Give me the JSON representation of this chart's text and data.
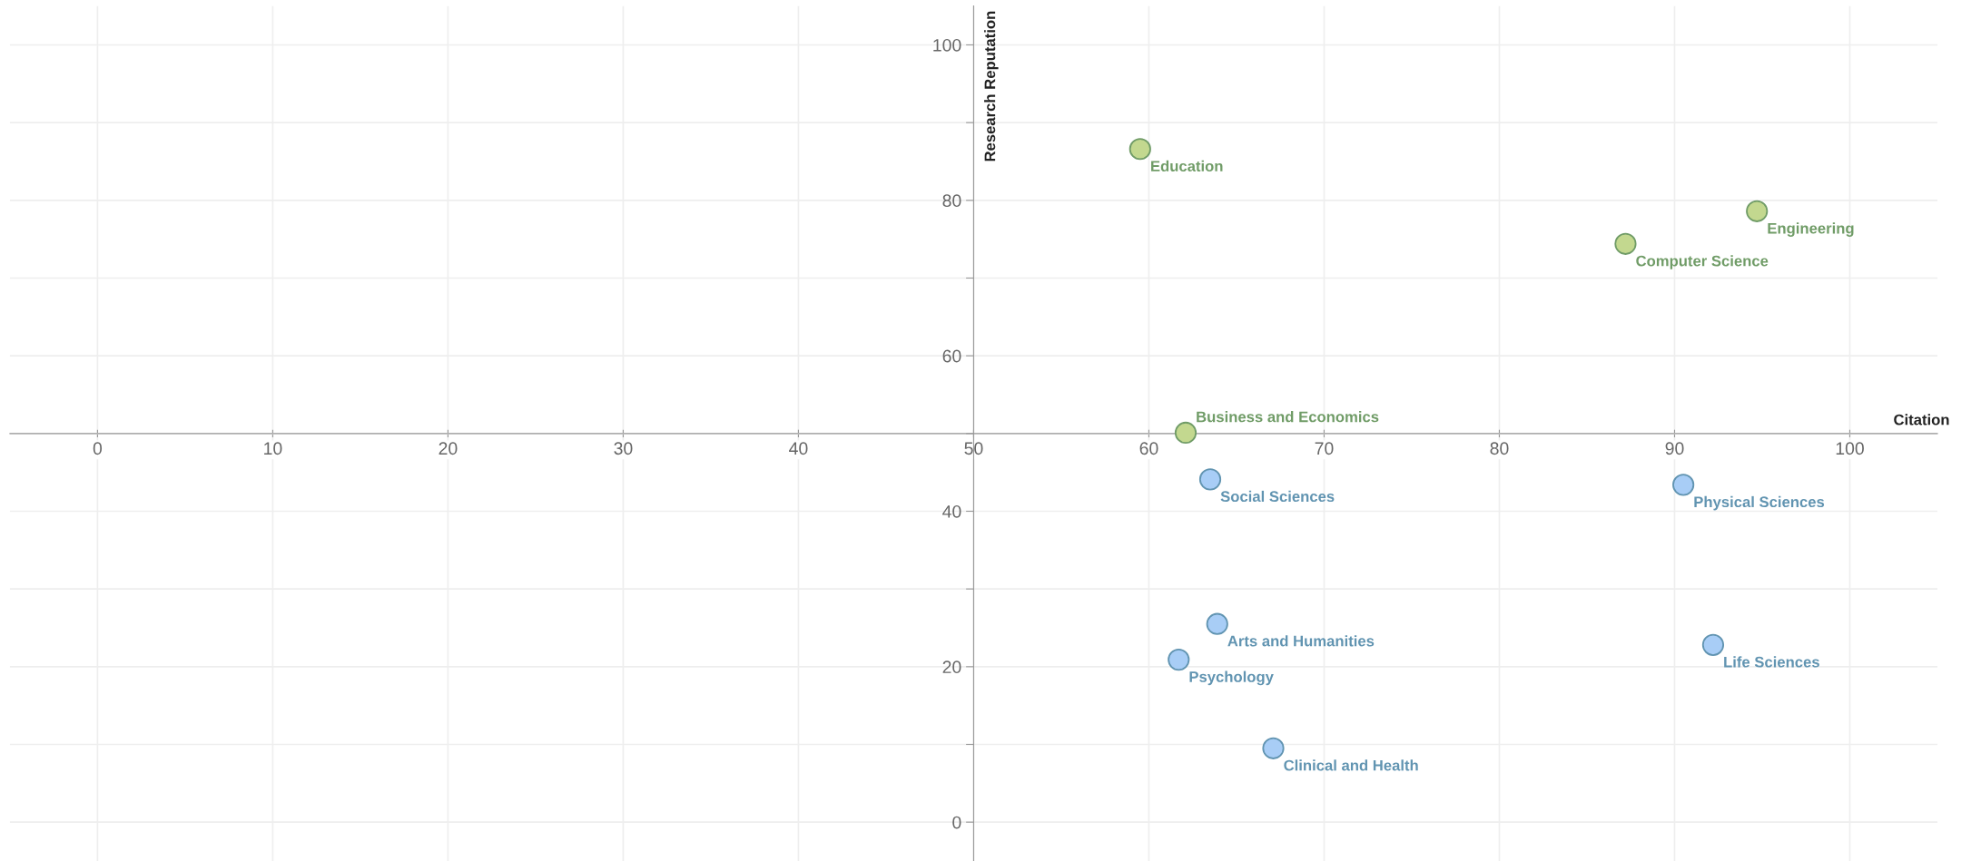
{
  "chart_data": {
    "type": "scatter",
    "xlabel": "Citation",
    "ylabel": "Research Reputation",
    "series": [
      {
        "color": "#c3d88f",
        "x": [
          59.5,
          94.7,
          87.2,
          62.1
        ],
        "values": [
          86.6,
          78.6,
          74.4,
          50.1
        ],
        "value_labels": [
          "Education",
          "Engineering",
          "Computer Science",
          "Business and Economics"
        ]
      },
      {
        "color": "#a8cdf6",
        "x": [
          63.5,
          90.5,
          63.9,
          61.7,
          92.2,
          67.1
        ],
        "values": [
          44.1,
          43.4,
          25.5,
          20.9,
          22.8,
          9.5
        ],
        "value_labels": [
          "Social Sciences",
          "Physical Sciences",
          "Arts and Humanities",
          "Psychology",
          "Life Sciences",
          "Clinical and Health"
        ]
      }
    ],
    "xlim": [
      -5,
      105
    ],
    "ylim": [
      -5,
      105
    ],
    "xticks": [
      0,
      10,
      20,
      30,
      40,
      50,
      60,
      70,
      80,
      90,
      100
    ],
    "yticks": [
      0,
      {
        "value": 10,
        "label": null
      },
      20,
      {
        "value": 30,
        "label": null
      },
      40,
      {
        "value": 50,
        "label": null
      },
      60,
      {
        "value": 70,
        "label": null
      },
      80,
      {
        "value": 90,
        "label": null
      },
      100
    ],
    "grid": true,
    "marker": "circle"
  }
}
